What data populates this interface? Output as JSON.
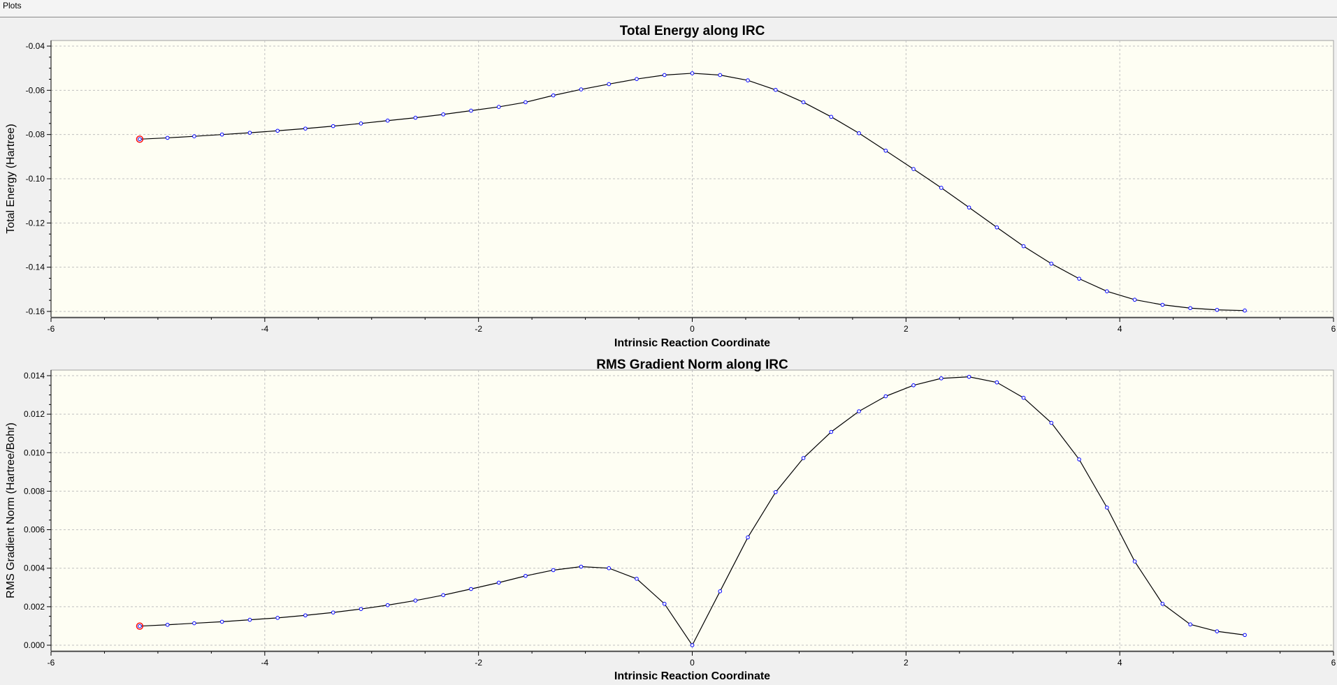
{
  "menu": {
    "plots_label": "Plots"
  },
  "styles": {
    "plot_bg": "#fefef3",
    "line_color": "#000000",
    "marker_color": "#0000ff",
    "highlight_color": "#ff0000",
    "grid_color": "#c0c0c0"
  },
  "chart_data": [
    {
      "type": "line",
      "title": "Total Energy along IRC",
      "xlabel": "Intrinsic Reaction Coordinate",
      "ylabel": "Total Energy (Hartree)",
      "xlim": [
        -6,
        6
      ],
      "ylim": [
        -0.16,
        -0.04
      ],
      "xticks": [
        -6,
        -4,
        -2,
        0,
        2,
        4,
        6
      ],
      "xtick_labels": [
        "-6",
        "-4",
        "-2",
        "0",
        "2",
        "4",
        "6"
      ],
      "yticks": [
        -0.04,
        -0.06,
        -0.08,
        -0.1,
        -0.12,
        -0.14,
        -0.16
      ],
      "ytick_labels": [
        "-0.04",
        "-0.06",
        "-0.08",
        "-0.10",
        "-0.12",
        "-0.14",
        "-0.16"
      ],
      "grid": true,
      "highlighted_point_index": 0,
      "x": [
        -5.17,
        -4.91,
        -4.66,
        -4.4,
        -4.14,
        -3.88,
        -3.62,
        -3.36,
        -3.1,
        -2.85,
        -2.59,
        -2.33,
        -2.07,
        -1.81,
        -1.56,
        -1.3,
        -1.04,
        -0.78,
        -0.52,
        -0.26,
        0.0,
        0.26,
        0.52,
        0.78,
        1.04,
        1.3,
        1.56,
        1.81,
        2.07,
        2.33,
        2.59,
        2.85,
        3.1,
        3.36,
        3.62,
        3.88,
        4.14,
        4.4,
        4.66,
        4.91,
        5.17
      ],
      "y": [
        -0.0821,
        -0.0815,
        -0.0808,
        -0.08,
        -0.0792,
        -0.0783,
        -0.0773,
        -0.0762,
        -0.075,
        -0.0737,
        -0.0724,
        -0.0709,
        -0.0692,
        -0.0675,
        -0.0654,
        -0.0623,
        -0.0596,
        -0.0572,
        -0.0549,
        -0.0531,
        -0.0523,
        -0.0531,
        -0.0555,
        -0.0598,
        -0.0654,
        -0.072,
        -0.0794,
        -0.0873,
        -0.0956,
        -0.1041,
        -0.113,
        -0.122,
        -0.1305,
        -0.1384,
        -0.1452,
        -0.1509,
        -0.1547,
        -0.157,
        -0.1585,
        -0.1593,
        -0.1596
      ]
    },
    {
      "type": "line",
      "title": "RMS Gradient Norm along IRC",
      "xlabel": "Intrinsic Reaction Coordinate",
      "ylabel": "RMS Gradient Norm (Hartree/Bohr)",
      "xlim": [
        -6,
        6
      ],
      "ylim": [
        0.0,
        0.014
      ],
      "xticks": [
        -6,
        -4,
        -2,
        0,
        2,
        4,
        6
      ],
      "xtick_labels": [
        "-6",
        "-4",
        "-2",
        "0",
        "2",
        "4",
        "6"
      ],
      "yticks": [
        0.014,
        0.012,
        0.01,
        0.008,
        0.006,
        0.004,
        0.002,
        0.0
      ],
      "ytick_labels": [
        "0.014",
        "0.012",
        "0.010",
        "0.008",
        "0.006",
        "0.004",
        "0.002",
        "0.000"
      ],
      "grid": true,
      "highlighted_point_index": 0,
      "x": [
        -5.17,
        -4.91,
        -4.66,
        -4.4,
        -4.14,
        -3.88,
        -3.62,
        -3.36,
        -3.1,
        -2.85,
        -2.59,
        -2.33,
        -2.07,
        -1.81,
        -1.56,
        -1.3,
        -1.04,
        -0.78,
        -0.52,
        -0.26,
        0.0,
        0.26,
        0.52,
        0.78,
        1.04,
        1.3,
        1.56,
        1.81,
        2.07,
        2.33,
        2.59,
        2.85,
        3.1,
        3.36,
        3.62,
        3.88,
        4.14,
        4.4,
        4.66,
        4.91,
        5.17
      ],
      "y": [
        0.00099,
        0.00106,
        0.00114,
        0.00122,
        0.00132,
        0.00142,
        0.00155,
        0.0017,
        0.00188,
        0.00208,
        0.00232,
        0.0026,
        0.00292,
        0.00325,
        0.0036,
        0.0039,
        0.00408,
        0.004,
        0.00345,
        0.00215,
        0.0,
        0.0028,
        0.0056,
        0.00795,
        0.00972,
        0.01108,
        0.01215,
        0.01293,
        0.0135,
        0.01386,
        0.01394,
        0.01365,
        0.01285,
        0.01155,
        0.00965,
        0.00715,
        0.00435,
        0.00215,
        0.00108,
        0.00072,
        0.00053
      ]
    }
  ]
}
